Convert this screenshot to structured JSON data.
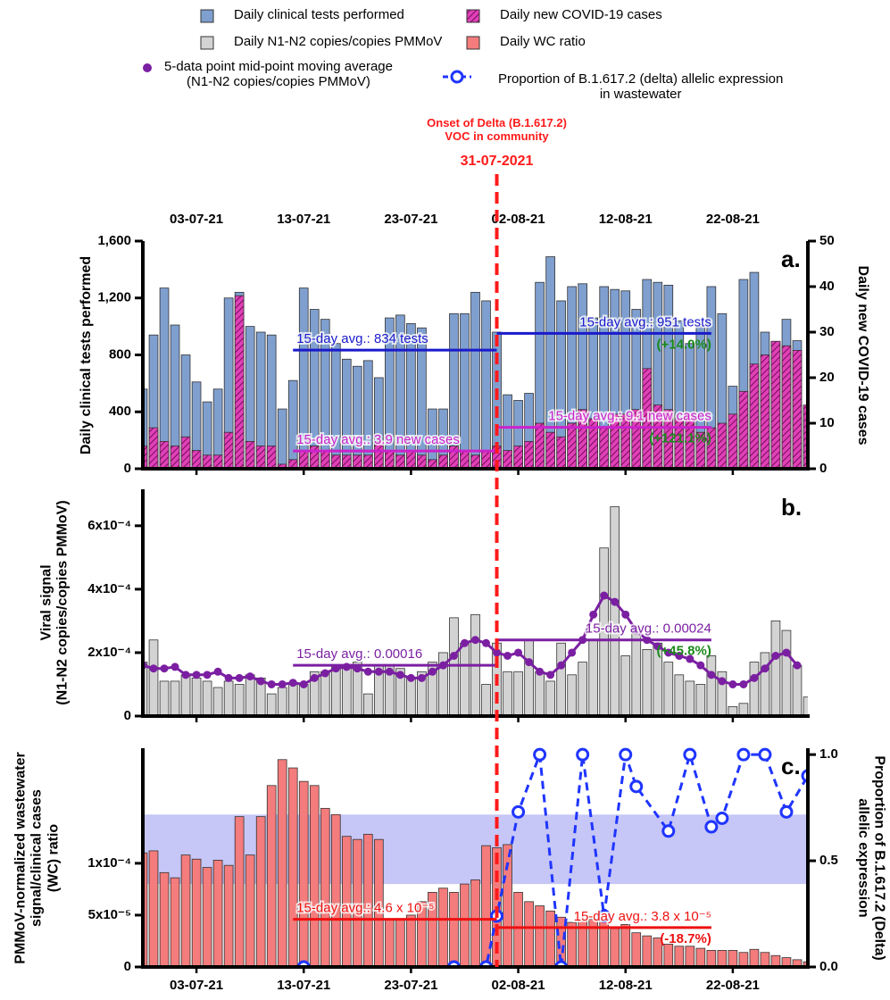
{
  "chart_data": {
    "type": "bar",
    "x": [
      "28-06-21",
      "29-06-21",
      "30-06-21",
      "01-07-21",
      "02-07-21",
      "03-07-21",
      "04-07-21",
      "05-07-21",
      "06-07-21",
      "07-07-21",
      "08-07-21",
      "09-07-21",
      "10-07-21",
      "11-07-21",
      "12-07-21",
      "13-07-21",
      "14-07-21",
      "15-07-21",
      "16-07-21",
      "17-07-21",
      "18-07-21",
      "19-07-21",
      "20-07-21",
      "21-07-21",
      "22-07-21",
      "23-07-21",
      "24-07-21",
      "25-07-21",
      "26-07-21",
      "27-07-21",
      "28-07-21",
      "29-07-21",
      "30-07-21",
      "31-07-21",
      "01-08-21",
      "02-08-21",
      "03-08-21",
      "04-08-21",
      "05-08-21",
      "06-08-21",
      "07-08-21",
      "08-08-21",
      "09-08-21",
      "10-08-21",
      "11-08-21",
      "12-08-21",
      "13-08-21",
      "14-08-21",
      "15-08-21",
      "16-08-21",
      "17-08-21",
      "18-08-21",
      "19-08-21",
      "20-08-21",
      "21-08-21",
      "22-08-21",
      "23-08-21",
      "24-08-21",
      "25-08-21",
      "26-08-21",
      "27-08-21",
      "28-08-21",
      "29-08-21"
    ],
    "xlim": [
      "28-06-21",
      "29-08-21"
    ],
    "xticks": [
      "03-07-21",
      "13-07-21",
      "23-07-21",
      "02-08-21",
      "12-08-21",
      "22-08-21"
    ],
    "annotation": {
      "text": "Onset of Delta (B.1.617.2)\nVOC in community",
      "date": "31-07-2021",
      "color": "#ff1a1a"
    },
    "panels": [
      {
        "label": "a.",
        "ylabel": "Daily clinical tests performed",
        "y2label": "Daily new COVID-19 cases",
        "ylim": [
          0,
          1600
        ],
        "yticks": [
          0,
          400,
          800,
          {
            "value": 1200,
            "label": "1,200"
          },
          {
            "value": 1600,
            "label": "1,600"
          }
        ],
        "y2lim": [
          0,
          50
        ],
        "y2ticks": [
          0,
          10,
          20,
          30,
          40,
          50
        ],
        "series": [
          {
            "name": "Daily clinical tests performed",
            "type": "bar",
            "color": "#7f9fcf",
            "values": [
              560,
              940,
              1270,
              1010,
              800,
              610,
              470,
              560,
              1200,
              1240,
              1000,
              960,
              940,
              420,
              620,
              1270,
              1120,
              1050,
              880,
              770,
              720,
              760,
              640,
              1060,
              1080,
              1020,
              990,
              420,
              420,
              1090,
              1090,
              1240,
              1180,
              960,
              520,
              480,
              530,
              1310,
              1490,
              1180,
              1280,
              1300,
              1060,
              1280,
              1260,
              1250,
              1120,
              1330,
              1310,
              1290,
              1040,
              880,
              1000,
              1280,
              1090,
              580,
              1330,
              1380,
              960,
              890,
              1050,
              900,
              440
            ]
          },
          {
            "name": "Daily new COVID-19 cases",
            "type": "bar",
            "axis": "y2",
            "color": "#e040b8",
            "hatch": true,
            "values": [
              5,
              9,
              6,
              5,
              7,
              4,
              3,
              3,
              8,
              38,
              6,
              5,
              5,
              1,
              2,
              4,
              5,
              4,
              3,
              3,
              3,
              3,
              6,
              4,
              3,
              4,
              3,
              2,
              3,
              5,
              4,
              3,
              4,
              5,
              4,
              5,
              6,
              10,
              8,
              7,
              10,
              13,
              11,
              9,
              12,
              12,
              13,
              22,
              14,
              13,
              11,
              12,
              8,
              9,
              10,
              12,
              17,
              23,
              25,
              28,
              27,
              26,
              14
            ]
          }
        ],
        "averages": [
          {
            "label": "15-day avg.: 834 tests",
            "value": 834,
            "color": "#1a1acc"
          },
          {
            "label": "15-day avg.: 3.9 new cases",
            "value": 3.9,
            "axis": "y2",
            "color": "#cc22cc"
          },
          {
            "label": "15-day avg.: 951 tests",
            "value": 951,
            "color": "#1a1acc",
            "change": "(+14.0%)",
            "change_color": "#1a8a1a"
          },
          {
            "label": "15-day avg.: 9.1 new cases",
            "value": 9.1,
            "axis": "y2",
            "color": "#cc22cc",
            "change": "(+121.1%)",
            "change_color": "#1a8a1a"
          }
        ]
      },
      {
        "label": "b.",
        "ylabel": "Viral signal\n(N1-N2 copies/copies PMMoV)",
        "ylim": [
          0,
          0.000715
        ],
        "yticks": [
          0,
          {
            "value": 0.0002,
            "label": "2x10⁻⁴"
          },
          {
            "value": 0.0004,
            "label": "4x10⁻⁴"
          },
          {
            "value": 0.0006,
            "label": "6x10⁻⁴"
          }
        ],
        "series": [
          {
            "name": "Daily N1-N2 copies/copies PMMoV",
            "type": "bar",
            "color": "#d3d3d3",
            "values": [
              0.00017,
              0.00024,
              0.00011,
              0.00011,
              0.00013,
              0.00012,
              0.00011,
              9e-05,
              0.00011,
              0.0001,
              0.00013,
              0.00012,
              7e-05,
              9e-05,
              0.0001,
              0.0001,
              0.00014,
              0.00014,
              0.00016,
              0.00016,
              0.00017,
              7e-05,
              0.00016,
              0.00016,
              0.00015,
              0.00012,
              0.00014,
              0.00017,
              0.0002,
              0.00031,
              0.00023,
              0.00032,
              0.0001,
              0.00023,
              0.00014,
              0.00014,
              0.00024,
              0.00014,
              0.00011,
              0.00023,
              0.00013,
              0.00017,
              0.00024,
              0.00053,
              0.00066,
              0.00019,
              0.00026,
              0.00021,
              0.00023,
              0.00017,
              0.00013,
              0.00011,
              0.0001,
              0.00019,
              0.00014,
              3e-05,
              4e-05,
              0.00017,
              0.0002,
              0.0003,
              0.00027,
              0.00016,
              6e-05
            ]
          },
          {
            "name": "5-data point mid-point moving average\n(N1-N2 copies/copies PMMoV)",
            "type": "line",
            "color": "#7b1fa2",
            "marker": "filled",
            "values": [
              0.00016,
              0.00015,
              0.00015,
              0.000155,
              0.00013,
              0.00013,
              0.00013,
              0.00014,
              0.00012,
              0.00012,
              0.000125,
              0.00011,
              0.0001,
              0.0001,
              0.000105,
              0.0001,
              0.00012,
              0.000135,
              0.00015,
              0.000155,
              0.00015,
              0.00014,
              0.00014,
              0.00014,
              0.00013,
              0.00012,
              0.00012,
              0.00014,
              0.00016,
              0.00019,
              0.00023,
              0.00024,
              0.00023,
              0.0002,
              0.00019,
              0.0002,
              0.00017,
              0.00014,
              0.00013,
              0.00016,
              0.0002,
              0.00024,
              0.00032,
              0.00038,
              0.00036,
              0.00032,
              0.00027,
              0.00024,
              0.00022,
              0.0002,
              0.00019,
              0.00018,
              0.00016,
              0.00013,
              0.00011,
              0.0001,
              0.0001,
              0.00012,
              0.00015,
              0.00019,
              0.0002,
              0.00016,
              null
            ]
          }
        ],
        "averages": [
          {
            "label": "15-day avg.: 0.00016",
            "value": 0.00016,
            "color": "#7b1fa2"
          },
          {
            "label": "15-day avg.: 0.00024",
            "value": 0.00024,
            "color": "#7b1fa2",
            "change": "(+45.8%)",
            "change_color": "#1a8a1a"
          }
        ]
      },
      {
        "label": "c.",
        "ylabel": "PMMoV-normalized wastewater\nsignal/clinical cases\n(WC) ratio",
        "y2label": "Proportion of B.1.617.2 (Delta)\nallelic expression",
        "ylim": [
          0,
          0.000211
        ],
        "yticks": [
          0,
          {
            "value": 5e-05,
            "label": "5x10⁻⁵"
          },
          {
            "value": 0.0001,
            "label": "1x10⁻⁴"
          }
        ],
        "y2lim": [
          0,
          1.03
        ],
        "y2ticks": [
          {
            "value": 0,
            "label": "0.0"
          },
          {
            "value": 0.5,
            "label": "0.5"
          },
          {
            "value": 1,
            "label": "1.0"
          }
        ],
        "shaded_range": [
          8e-05,
          0.000147
        ],
        "shade_color": "#b8b8f5",
        "series": [
          {
            "name": "Daily WC ratio",
            "type": "bar",
            "color": "#f47c7c",
            "values": [
              0.00011,
              0.000112,
              9.1e-05,
              8.6e-05,
              0.000108,
              0.000104,
              9.6e-05,
              0.000103,
              9.8e-05,
              0.000145,
              0.000108,
              0.000145,
              0.000175,
              0.0002,
              0.000192,
              0.000179,
              0.000175,
              0.000153,
              0.000147,
              0.000126,
              0.000123,
              0.000128,
              0.000123,
              4.6e-05,
              4.6e-05,
              5e-05,
              6.3e-05,
              7.2e-05,
              7.6e-05,
              7.2e-05,
              8e-05,
              8.4e-05,
              0.000117,
              0.000115,
              0.000118,
              7.2e-05,
              6.3e-05,
              5.9e-05,
              5.4e-05,
              4.8e-05,
              4.3e-05,
              4.5e-05,
              4.6e-05,
              4.6e-05,
              3.7e-05,
              4.1e-05,
              3.3e-05,
              3e-05,
              2.8e-05,
              2.2e-05,
              2e-05,
              2e-05,
              1.8e-05,
              1.6e-05,
              1.6e-05,
              1.6e-05,
              1.4e-05,
              1.7e-05,
              1.4e-05,
              1.1e-05,
              9e-06,
              7e-06,
              5e-06
            ]
          },
          {
            "name": "Proportion of B.1.617.2 (delta) allelic expression\nin wastewater",
            "type": "line",
            "axis": "y2",
            "color": "#1f35ff",
            "marker": "open",
            "dashed": true,
            "x": [
              "13-07-21",
              "27-07-21",
              "30-07-21",
              "31-07-21",
              "02-08-21",
              "04-08-21",
              "06-08-21",
              "08-08-21",
              "10-08-21",
              "12-08-21",
              "13-08-21",
              "16-08-21",
              "18-08-21",
              "20-08-21",
              "21-08-21",
              "23-08-21",
              "25-08-21",
              "27-08-21",
              "29-08-21"
            ],
            "values": [
              0,
              0,
              0,
              0.24,
              0.73,
              1,
              0,
              1,
              0.24,
              1,
              0.85,
              0.64,
              1,
              0.66,
              0.7,
              1,
              1,
              0.73,
              0.9
            ]
          }
        ],
        "averages": [
          {
            "label": "15-day avg.: 4.6 x 10⁻⁵",
            "value": 4.6e-05,
            "color": "#ee1111"
          },
          {
            "label": "15-day avg.: 3.8 x 10⁻⁵",
            "value": 3.8e-05,
            "color": "#ee1111",
            "change": "(-18.7%)",
            "change_color": "#ee1111"
          }
        ]
      }
    ]
  }
}
